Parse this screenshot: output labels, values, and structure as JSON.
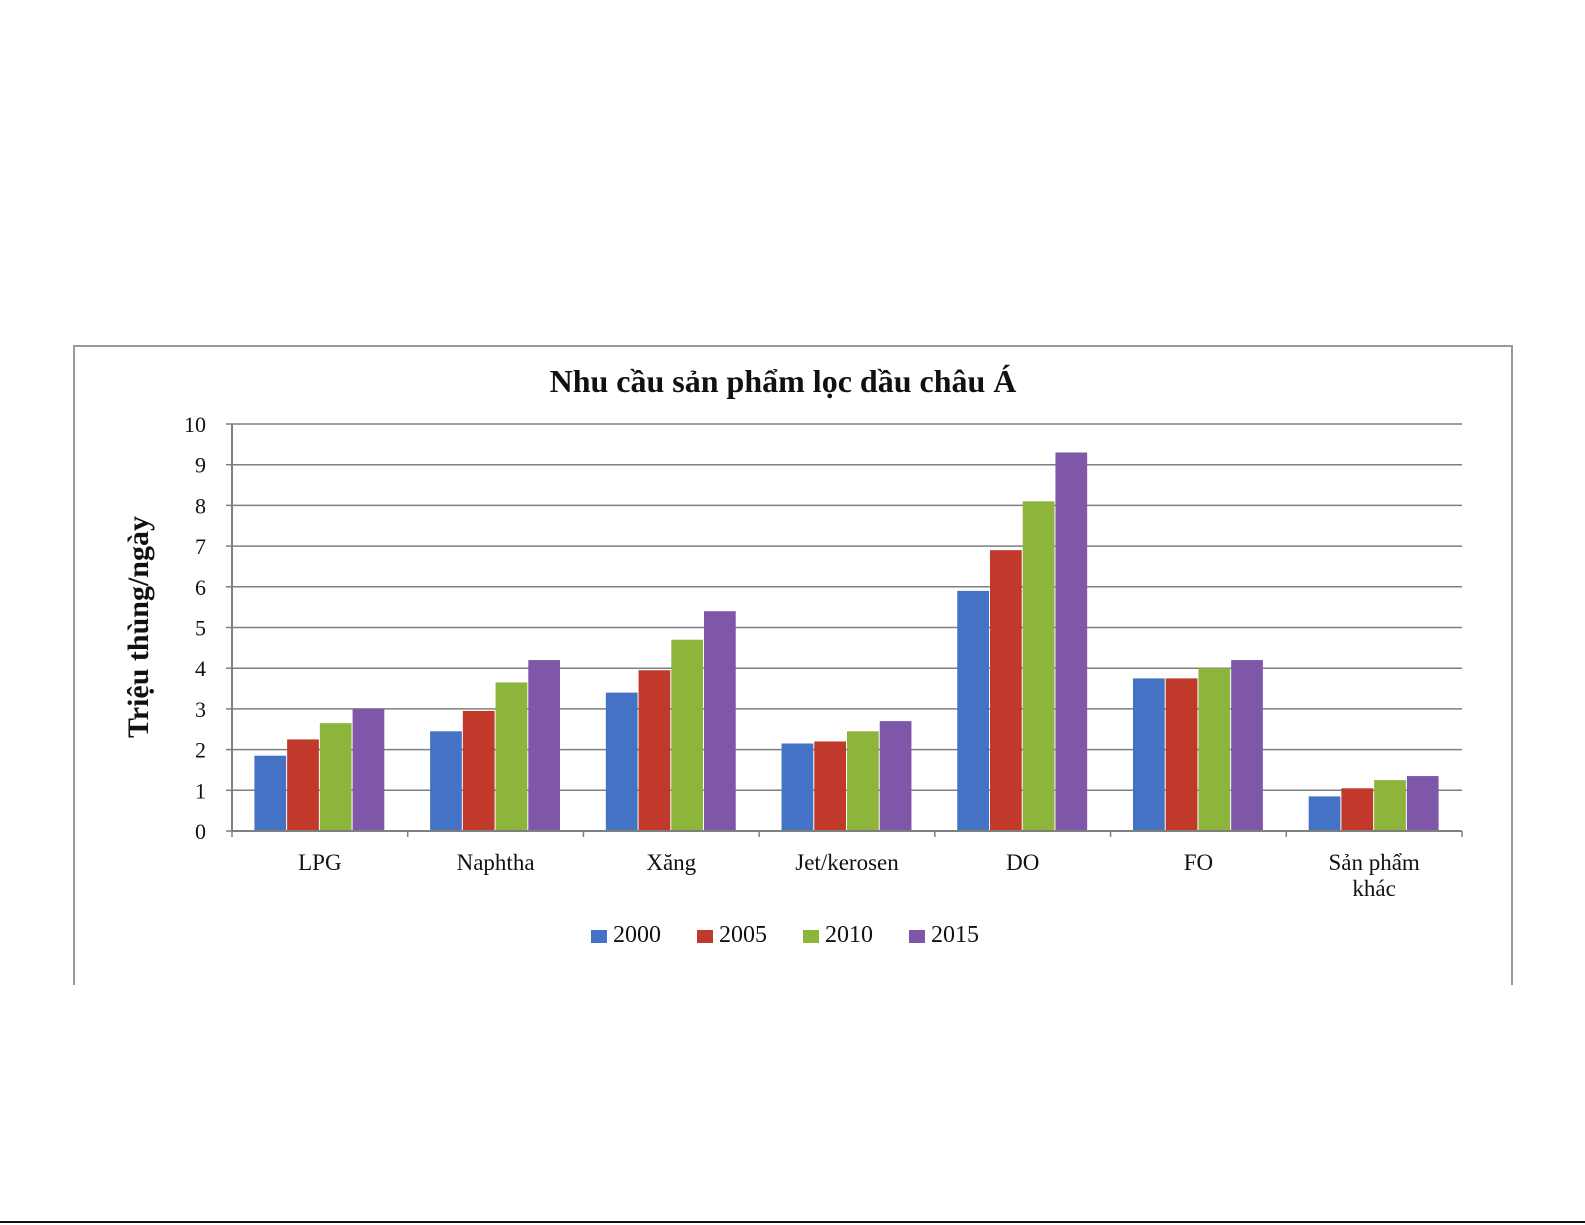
{
  "chart_data": {
    "type": "bar",
    "title": "Nhu cầu sản phẩm lọc dầu châu Á",
    "xlabel": "",
    "ylabel": "Triệu thùng/ngày",
    "ylim": [
      0,
      10
    ],
    "yticks": [
      "0",
      "1",
      "2",
      "3",
      "4",
      "5",
      "6",
      "7",
      "8",
      "9",
      "10"
    ],
    "grid": true,
    "legend": "bottom",
    "categories": [
      [
        "LPG"
      ],
      [
        "Naphtha"
      ],
      [
        "Xăng"
      ],
      [
        "Jet/kerosen"
      ],
      [
        "DO"
      ],
      [
        "FO"
      ],
      [
        "Sản phẩm",
        "khác"
      ]
    ],
    "series": [
      {
        "name": "2000",
        "color": "#4472C4",
        "values": [
          1.85,
          2.45,
          3.4,
          2.15,
          5.9,
          3.75,
          0.85
        ]
      },
      {
        "name": "2005",
        "color": "#C0392B",
        "values": [
          2.25,
          2.95,
          3.95,
          2.2,
          6.9,
          3.75,
          1.05
        ]
      },
      {
        "name": "2010",
        "color": "#8DB53C",
        "values": [
          2.65,
          3.65,
          4.7,
          2.45,
          8.1,
          4.0,
          1.25
        ]
      },
      {
        "name": "2015",
        "color": "#7E57A8",
        "values": [
          3.0,
          4.2,
          5.4,
          2.7,
          9.3,
          4.2,
          1.35
        ]
      }
    ]
  }
}
